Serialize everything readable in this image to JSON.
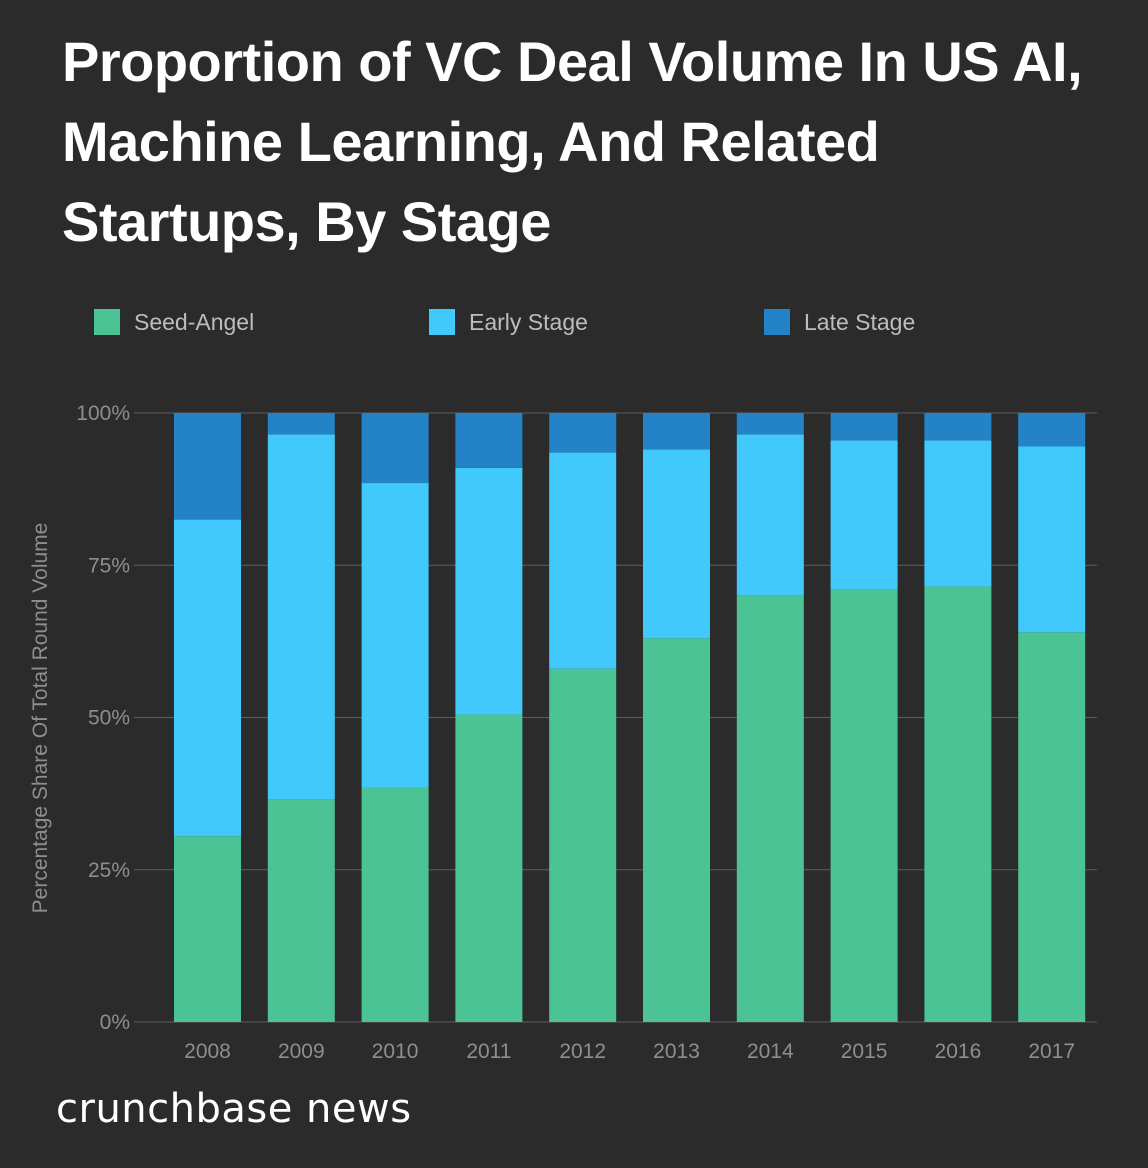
{
  "brand": "crunchbase news",
  "chart_data": {
    "type": "bar",
    "stacked": true,
    "title": "Proportion of VC Deal Volume In US AI, Machine Learning, And Related Startups, By Stage",
    "xlabel": "",
    "ylabel": "Percentage Share Of Total Round Volume",
    "ylim": [
      0,
      100
    ],
    "yticks": [
      "0%",
      "25%",
      "50%",
      "75%",
      "100%"
    ],
    "categories": [
      "2008",
      "2009",
      "2010",
      "2011",
      "2012",
      "2013",
      "2014",
      "2015",
      "2016",
      "2017"
    ],
    "legend_position": "top",
    "grid": true,
    "series": [
      {
        "name": "Seed-Angel",
        "color": "#4cc395",
        "values": [
          30.5,
          36.5,
          38.5,
          50.5,
          58,
          63,
          70,
          71,
          71.5,
          64
        ]
      },
      {
        "name": "Early Stage",
        "color": "#40c9fa",
        "values": [
          52,
          60,
          50,
          40.5,
          35.5,
          31,
          26.5,
          24.5,
          24,
          30.5
        ]
      },
      {
        "name": "Late Stage",
        "color": "#2383c6",
        "values": [
          17.5,
          3.5,
          11.5,
          9,
          6.5,
          6,
          3.5,
          4.5,
          4.5,
          5.5
        ]
      }
    ]
  }
}
